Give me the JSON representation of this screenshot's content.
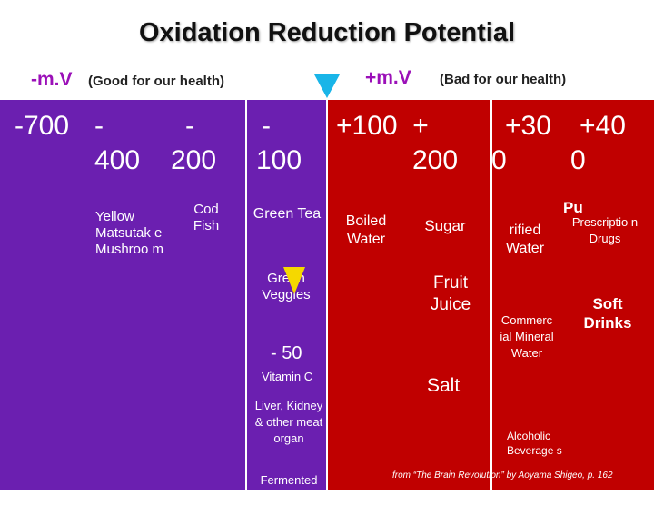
{
  "title": "Oxidation Reduction Potential",
  "scale": {
    "neg_unit": "-m.V",
    "neg_note": "(Good for our health)",
    "pos_unit": "+m.V",
    "pos_note": "(Bad for our health)"
  },
  "columns": [
    {
      "line1": "-700",
      "line2": ""
    },
    {
      "line1": "-",
      "line2": "400"
    },
    {
      "line1": "-",
      "line2": "200"
    },
    {
      "line1": "-",
      "line2": "100"
    },
    {
      "line1": "+100  +",
      "line2": "200"
    },
    {
      "line1": "+30",
      "line2": "0"
    },
    {
      "line1": "+40",
      "line2": "0"
    }
  ],
  "items": {
    "yellow_mushroom": "Yellow Matsutak e Mushroo m",
    "cod_fish": "Cod Fish",
    "green_tea": "Green Tea",
    "green_veggies": "Green Veggies",
    "minus_50": "- 50",
    "vitamin_c": "Vitamin C",
    "liver": "Liver, Kidney & other meat organ",
    "fermented": "Fermented Soybeans",
    "boiled_water": "Boiled Water",
    "sugar": "Sugar",
    "fruit_juice": "Fruit Juice",
    "salt": "Salt",
    "purified_pre": "Pu",
    "purified_water": "rified Water",
    "prescription_drugs": "Prescriptio n Drugs",
    "soft_drinks": "Soft Drinks",
    "mineral_water": "Commerc ial Mineral Water",
    "alcoholic": "Alcoholic Beverage s"
  },
  "source": "from “The Brain Revolution” by Aoyama Shigeo, p. 162",
  "colors": {
    "purple_band": "#6b1fb0",
    "red_band": "#c00000",
    "cyan_marker": "#19b5e8",
    "yellow_marker": "#f5d800",
    "unit_color": "#9b10b8"
  },
  "icons": [
    "cyan-triangle-marker",
    "yellow-triangle-marker"
  ]
}
